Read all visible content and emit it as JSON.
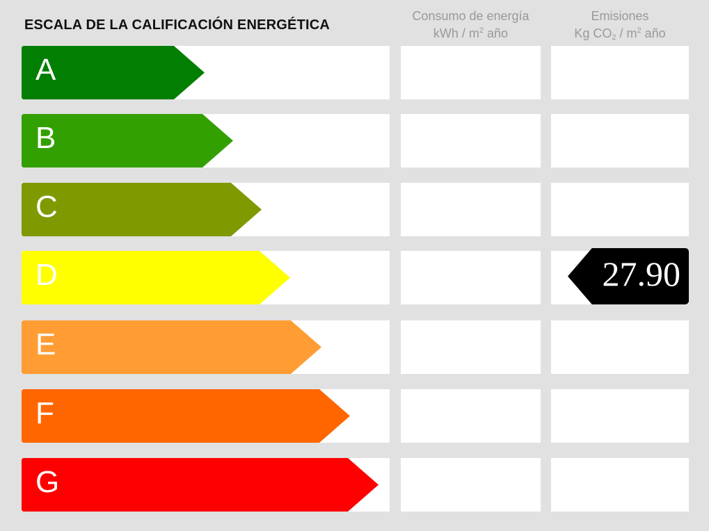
{
  "title": "ESCALA DE LA CALIFICACIÓN ENERGÉTICA",
  "columns": {
    "consumption": {
      "line1": "Consumo de energía",
      "unit_pre": "kWh / m",
      "unit_sup": "2",
      "unit_post": " año"
    },
    "emissions": {
      "line1": "Emisiones",
      "unit_pre": "Kg CO",
      "unit_sub": "2",
      "unit_mid": " / m",
      "unit_sup": "2",
      "unit_post": " año"
    }
  },
  "ratings": [
    {
      "letter": "A",
      "color": "#027f02"
    },
    {
      "letter": "B",
      "color": "#33a002"
    },
    {
      "letter": "C",
      "color": "#7f9a00"
    },
    {
      "letter": "D",
      "color": "#ffff00"
    },
    {
      "letter": "E",
      "color": "#ff9c33"
    },
    {
      "letter": "F",
      "color": "#ff6600"
    },
    {
      "letter": "G",
      "color": "#ff0000"
    }
  ],
  "current": {
    "emissions_rating": "D",
    "emissions_value": "27.90",
    "consumption_value": null
  }
}
